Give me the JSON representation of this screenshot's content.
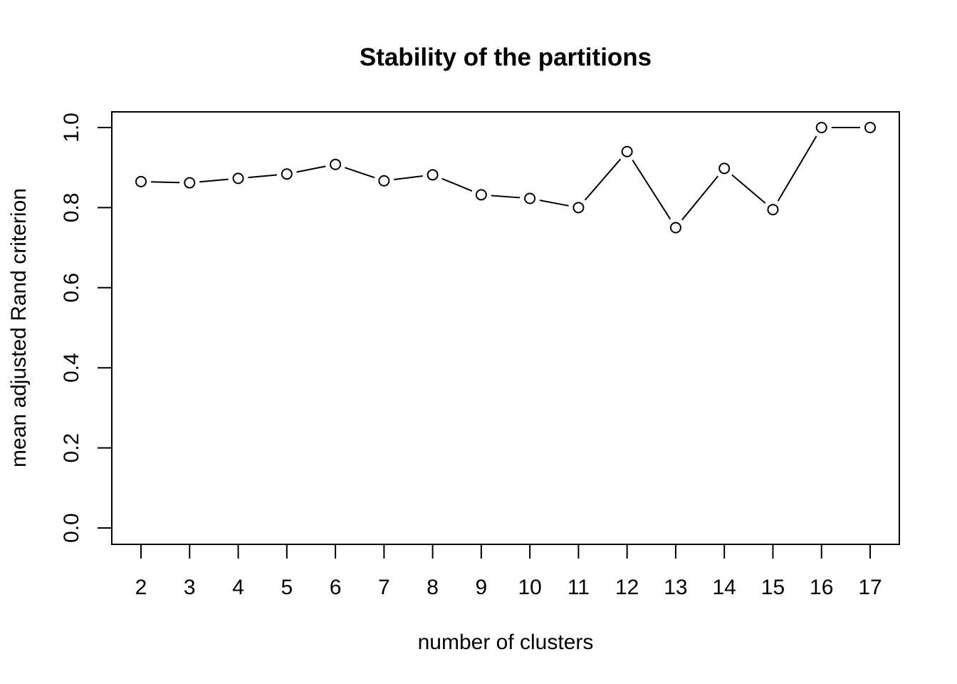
{
  "chart_data": {
    "type": "line",
    "title": "Stability of the partitions",
    "xlabel": "number of clusters",
    "ylabel": "mean adjusted Rand criterion",
    "x": [
      2,
      3,
      4,
      5,
      6,
      7,
      8,
      9,
      10,
      11,
      12,
      13,
      14,
      15,
      16,
      17
    ],
    "series": [
      {
        "values": [
          0.865,
          0.862,
          0.873,
          0.884,
          0.908,
          0.867,
          0.882,
          0.832,
          0.823,
          0.8,
          0.94,
          0.75,
          0.898,
          0.795,
          1.0,
          1.0
        ]
      }
    ],
    "x_ticks": [
      "2",
      "3",
      "4",
      "5",
      "6",
      "7",
      "8",
      "9",
      "10",
      "11",
      "12",
      "13",
      "14",
      "15",
      "16",
      "17"
    ],
    "y_ticks": [
      "0.0",
      "0.2",
      "0.4",
      "0.6",
      "0.8",
      "1.0"
    ],
    "y_tick_values": [
      0.0,
      0.2,
      0.4,
      0.6,
      0.8,
      1.0
    ],
    "ylim": [
      0.0,
      1.0
    ],
    "xlim": [
      2,
      17
    ],
    "markers": "open-circle",
    "grid": false,
    "legend": "none"
  }
}
